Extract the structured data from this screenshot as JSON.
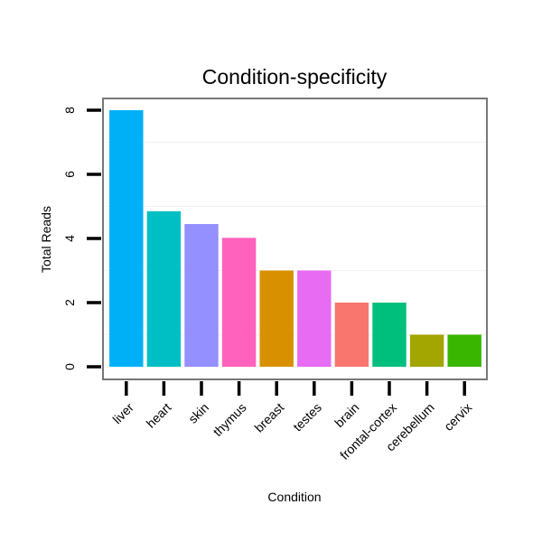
{
  "chart_data": {
    "type": "bar",
    "title": "Condition-specificity",
    "xlabel": "Condition",
    "ylabel": "Total Reads",
    "categories": [
      "liver",
      "heart",
      "skin",
      "thymus",
      "breast",
      "testes",
      "brain",
      "frontal-cortex",
      "cerebellum",
      "cervix"
    ],
    "values": [
      8,
      4.85,
      4.45,
      4.02,
      3.0,
      3.0,
      2.0,
      2.0,
      1.0,
      1.0
    ],
    "colors": [
      "#00B0F6",
      "#00BFC4",
      "#9590FF",
      "#FF62BC",
      "#D89000",
      "#E76BF3",
      "#F8766D",
      "#00BF7D",
      "#A3A500",
      "#39B600"
    ],
    "yticks": [
      0,
      2,
      4,
      6,
      8
    ],
    "ylim": [
      0,
      8.3
    ],
    "grid": true,
    "legend": "none"
  }
}
